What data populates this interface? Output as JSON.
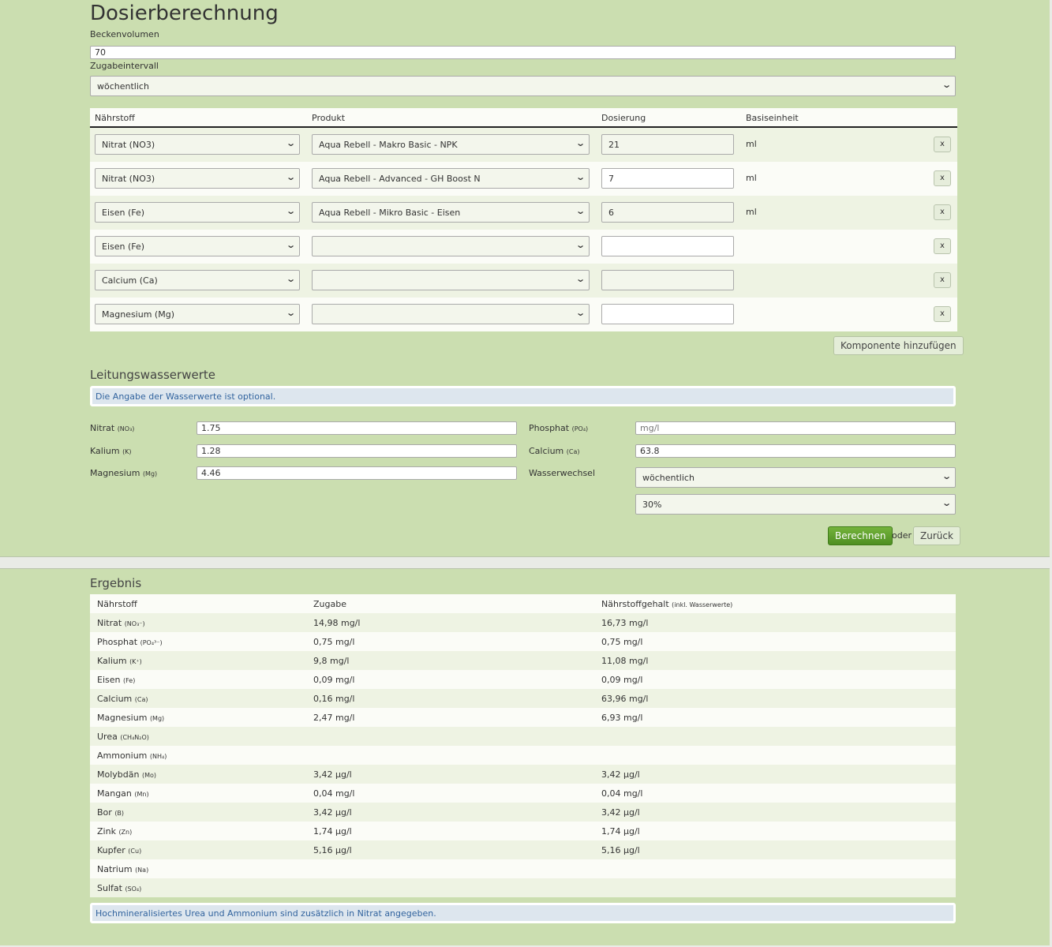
{
  "title": "Dosierberechnung",
  "tank": {
    "label": "Beckenvolumen",
    "value": "70"
  },
  "interval": {
    "label": "Zugabeintervall",
    "value": "wöchentlich"
  },
  "components": {
    "headers": [
      "Nährstoff",
      "Produkt",
      "Dosierung",
      "Basiseinheit"
    ],
    "rows": [
      {
        "nutrient": "Nitrat (NO3)",
        "product": "Aqua Rebell - Makro Basic - NPK",
        "dose": "21",
        "unit": "ml"
      },
      {
        "nutrient": "Nitrat (NO3)",
        "product": "Aqua Rebell - Advanced - GH Boost N",
        "dose": "7",
        "unit": "ml"
      },
      {
        "nutrient": "Eisen (Fe)",
        "product": "Aqua Rebell - Mikro Basic - Eisen",
        "dose": "6",
        "unit": "ml"
      },
      {
        "nutrient": "Eisen (Fe)",
        "product": "",
        "dose": "",
        "unit": ""
      },
      {
        "nutrient": "Calcium (Ca)",
        "product": "",
        "dose": "",
        "unit": ""
      },
      {
        "nutrient": "Magnesium (Mg)",
        "product": "",
        "dose": "",
        "unit": ""
      }
    ],
    "remove_label": "x",
    "add_label": "Komponente hinzufügen"
  },
  "tapwater": {
    "heading": "Leitungswasserwerte",
    "info": "Die Angabe der Wasserwerte ist optional.",
    "nitrate": {
      "label": "Nitrat",
      "sym": "(NO₃)",
      "value": "1.75"
    },
    "potassium": {
      "label": "Kalium",
      "sym": "(K)",
      "value": "1.28"
    },
    "magnesium": {
      "label": "Magnesium",
      "sym": "(Mg)",
      "value": "4.46"
    },
    "phosphate": {
      "label": "Phosphat",
      "sym": "(PO₄)",
      "value": "",
      "placeholder": "mg/l"
    },
    "calcium": {
      "label": "Calcium",
      "sym": "(Ca)",
      "value": "63.8"
    },
    "waterchange": {
      "label": "Wasserwechsel",
      "interval": "wöchentlich",
      "percent": "30%"
    }
  },
  "actions": {
    "calculate": "Berechnen",
    "or": "oder",
    "back": "Zurück"
  },
  "result": {
    "heading": "Ergebnis",
    "headers": {
      "nutrient": "Nährstoff",
      "added": "Zugabe",
      "content": "Nährstoffgehalt",
      "content_note": "(inkl. Wasserwerte)"
    },
    "rows": [
      {
        "name": "Nitrat",
        "sym": "(NO₃⁻)",
        "added": "14,98 mg/l",
        "content": "16,73 mg/l"
      },
      {
        "name": "Phosphat",
        "sym": "(PO₄³⁻)",
        "added": "0,75 mg/l",
        "content": "0,75 mg/l"
      },
      {
        "name": "Kalium",
        "sym": "(K⁺)",
        "added": "9,8 mg/l",
        "content": "11,08 mg/l"
      },
      {
        "name": "Eisen",
        "sym": "(Fe)",
        "added": "0,09 mg/l",
        "content": "0,09 mg/l"
      },
      {
        "name": "Calcium",
        "sym": "(Ca)",
        "added": "0,16 mg/l",
        "content": "63,96 mg/l"
      },
      {
        "name": "Magnesium",
        "sym": "(Mg)",
        "added": "2,47 mg/l",
        "content": "6,93 mg/l"
      },
      {
        "name": "Urea",
        "sym": "(CH₄N₂O)",
        "added": "",
        "content": ""
      },
      {
        "name": "Ammonium",
        "sym": "(NH₄)",
        "added": "",
        "content": ""
      },
      {
        "name": "Molybdän",
        "sym": "(Mo)",
        "added": "3,42 µg/l",
        "content": "3,42 µg/l"
      },
      {
        "name": "Mangan",
        "sym": "(Mn)",
        "added": "0,04 mg/l",
        "content": "0,04 mg/l"
      },
      {
        "name": "Bor",
        "sym": "(B)",
        "added": "3,42 µg/l",
        "content": "3,42 µg/l"
      },
      {
        "name": "Zink",
        "sym": "(Zn)",
        "added": "1,74 µg/l",
        "content": "1,74 µg/l"
      },
      {
        "name": "Kupfer",
        "sym": "(Cu)",
        "added": "5,16 µg/l",
        "content": "5,16 µg/l"
      },
      {
        "name": "Natrium",
        "sym": "(Na)",
        "added": "",
        "content": ""
      },
      {
        "name": "Sulfat",
        "sym": "(SO₄)",
        "added": "",
        "content": ""
      }
    ],
    "note": "Hochmineralisiertes Urea und Ammonium sind zusätzlich in Nitrat angegeben."
  },
  "colors": {
    "background": "#cbdeb0",
    "primary_button": "#5e9e2c",
    "info": "#dde6ee"
  }
}
